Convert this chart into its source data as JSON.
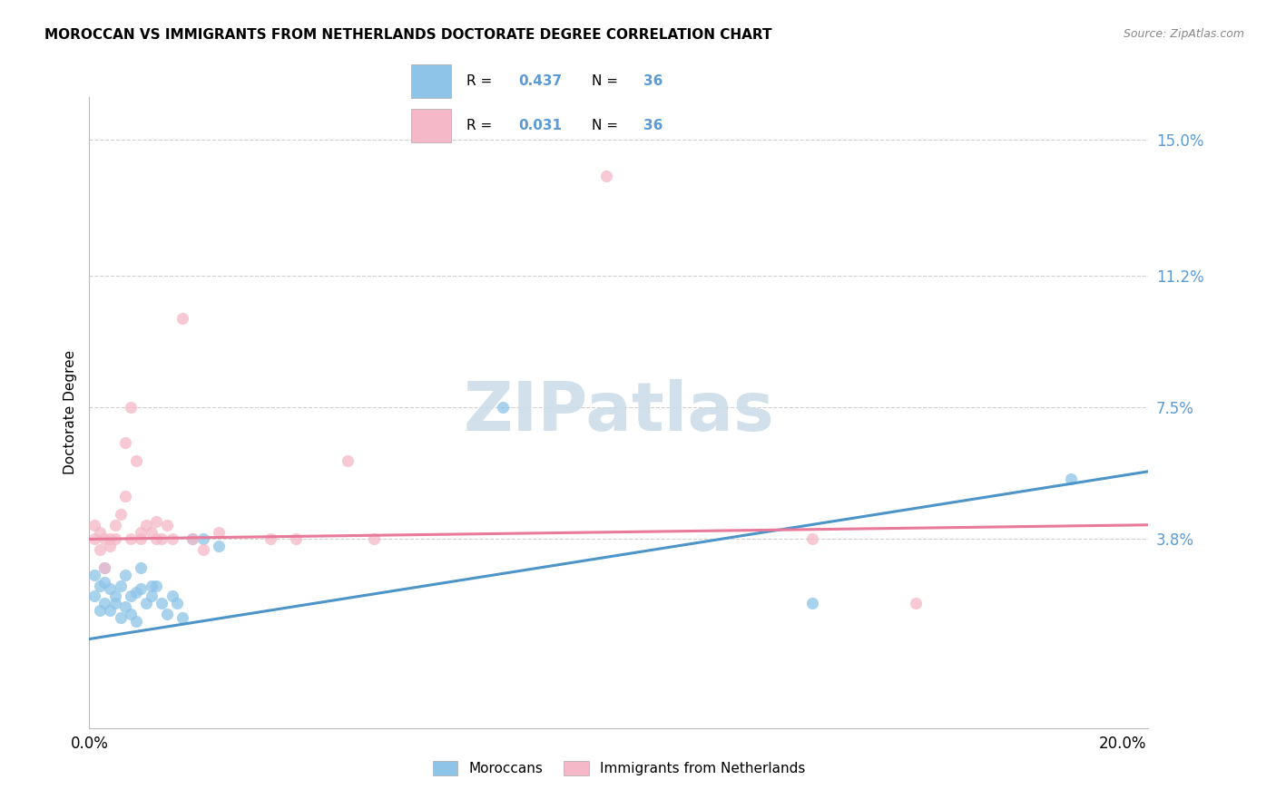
{
  "title": "MOROCCAN VS IMMIGRANTS FROM NETHERLANDS DOCTORATE DEGREE CORRELATION CHART",
  "source": "Source: ZipAtlas.com",
  "ylabel": "Doctorate Degree",
  "ytick_vals": [
    0.0,
    0.038,
    0.075,
    0.112,
    0.15
  ],
  "ytick_labels": [
    "",
    "3.8%",
    "7.5%",
    "11.2%",
    "15.0%"
  ],
  "xtick_vals": [
    0.0,
    0.05,
    0.1,
    0.15,
    0.2
  ],
  "xlim": [
    0.0,
    0.205
  ],
  "ylim": [
    -0.015,
    0.162
  ],
  "legend_r1": "0.437",
  "legend_n1": "36",
  "legend_r2": "0.031",
  "legend_n2": "36",
  "legend_label1": "Moroccans",
  "legend_label2": "Immigrants from Netherlands",
  "color_blue": "#8dc4e8",
  "color_pink": "#f4b8c8",
  "color_blue_line": "#4d94c8",
  "color_pink_line": "#e87a9a",
  "color_axis_label": "#5b9bd5",
  "watermark_color": "#ccdde8",
  "grid_color": "#d0d0d0",
  "blue_scatter_x": [
    0.001,
    0.001,
    0.002,
    0.002,
    0.003,
    0.003,
    0.003,
    0.004,
    0.004,
    0.005,
    0.005,
    0.006,
    0.006,
    0.007,
    0.007,
    0.008,
    0.008,
    0.009,
    0.009,
    0.01,
    0.01,
    0.011,
    0.012,
    0.012,
    0.013,
    0.014,
    0.015,
    0.016,
    0.017,
    0.018,
    0.02,
    0.022,
    0.025,
    0.08,
    0.14,
    0.19
  ],
  "blue_scatter_y": [
    0.022,
    0.028,
    0.018,
    0.025,
    0.02,
    0.026,
    0.03,
    0.018,
    0.024,
    0.02,
    0.022,
    0.016,
    0.025,
    0.019,
    0.028,
    0.022,
    0.017,
    0.015,
    0.023,
    0.024,
    0.03,
    0.02,
    0.025,
    0.022,
    0.025,
    0.02,
    0.017,
    0.022,
    0.02,
    0.016,
    0.038,
    0.038,
    0.036,
    0.075,
    0.02,
    0.055
  ],
  "pink_scatter_x": [
    0.001,
    0.001,
    0.002,
    0.002,
    0.003,
    0.003,
    0.004,
    0.004,
    0.005,
    0.005,
    0.006,
    0.007,
    0.007,
    0.008,
    0.008,
    0.009,
    0.01,
    0.01,
    0.011,
    0.012,
    0.013,
    0.013,
    0.014,
    0.015,
    0.016,
    0.018,
    0.02,
    0.022,
    0.025,
    0.035,
    0.04,
    0.05,
    0.055,
    0.1,
    0.14,
    0.16
  ],
  "pink_scatter_y": [
    0.038,
    0.042,
    0.035,
    0.04,
    0.03,
    0.038,
    0.036,
    0.038,
    0.042,
    0.038,
    0.045,
    0.05,
    0.065,
    0.038,
    0.075,
    0.06,
    0.04,
    0.038,
    0.042,
    0.04,
    0.038,
    0.043,
    0.038,
    0.042,
    0.038,
    0.1,
    0.038,
    0.035,
    0.04,
    0.038,
    0.038,
    0.06,
    0.038,
    0.14,
    0.038,
    0.02
  ],
  "blue_line_x": [
    0.0,
    0.205
  ],
  "blue_line_y": [
    0.01,
    0.057
  ],
  "pink_line_x": [
    0.0,
    0.205
  ],
  "pink_line_y": [
    0.038,
    0.042
  ]
}
